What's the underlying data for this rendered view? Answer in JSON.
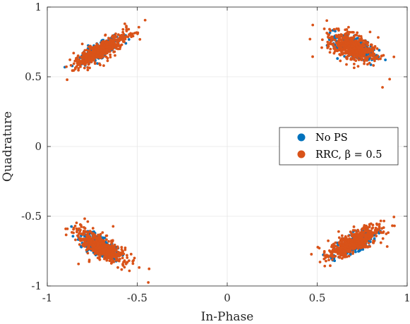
{
  "chart_data": {
    "type": "scatter",
    "title": "",
    "xlabel": "In-Phase",
    "ylabel": "Quadrature",
    "xlim": [
      -1,
      1
    ],
    "ylim": [
      -1,
      1
    ],
    "xticks": [
      -1,
      -0.5,
      0,
      0.5,
      1
    ],
    "yticks": [
      -1,
      -0.5,
      0,
      0.5,
      1
    ],
    "xtick_labels": [
      "-1",
      "-0.5",
      "0",
      "0.5",
      "1"
    ],
    "ytick_labels": [
      "-1",
      "-0.5",
      "0",
      "0.5",
      "1"
    ],
    "grid": true,
    "legend_position": "right-center",
    "series": [
      {
        "name": "No PS",
        "color": "#0072BD",
        "clusters": [
          {
            "center": [
              -0.71,
              0.69
            ],
            "spread_major": 0.065,
            "spread_minor": 0.02,
            "tilt_deg": 38,
            "count": 380
          },
          {
            "center": [
              0.71,
              0.71
            ],
            "spread_major": 0.06,
            "spread_minor": 0.03,
            "tilt_deg": -35,
            "count": 380
          },
          {
            "center": [
              -0.71,
              -0.71
            ],
            "spread_major": 0.055,
            "spread_minor": 0.025,
            "tilt_deg": -40,
            "count": 380
          },
          {
            "center": [
              0.7,
              -0.7
            ],
            "spread_major": 0.06,
            "spread_minor": 0.025,
            "tilt_deg": 35,
            "count": 380
          }
        ]
      },
      {
        "name": "RRC, β = 0.5",
        "color": "#D95319",
        "clusters": [
          {
            "center": [
              -0.7,
              0.69
            ],
            "spread_major": 0.085,
            "spread_minor": 0.025,
            "tilt_deg": 38,
            "count": 520
          },
          {
            "center": [
              0.7,
              0.71
            ],
            "spread_major": 0.07,
            "spread_minor": 0.04,
            "tilt_deg": -30,
            "count": 520
          },
          {
            "center": [
              -0.7,
              -0.72
            ],
            "spread_major": 0.085,
            "spread_minor": 0.03,
            "tilt_deg": -40,
            "count": 520
          },
          {
            "center": [
              0.7,
              -0.69
            ],
            "spread_major": 0.085,
            "spread_minor": 0.03,
            "tilt_deg": 35,
            "count": 520
          }
        ]
      }
    ]
  }
}
